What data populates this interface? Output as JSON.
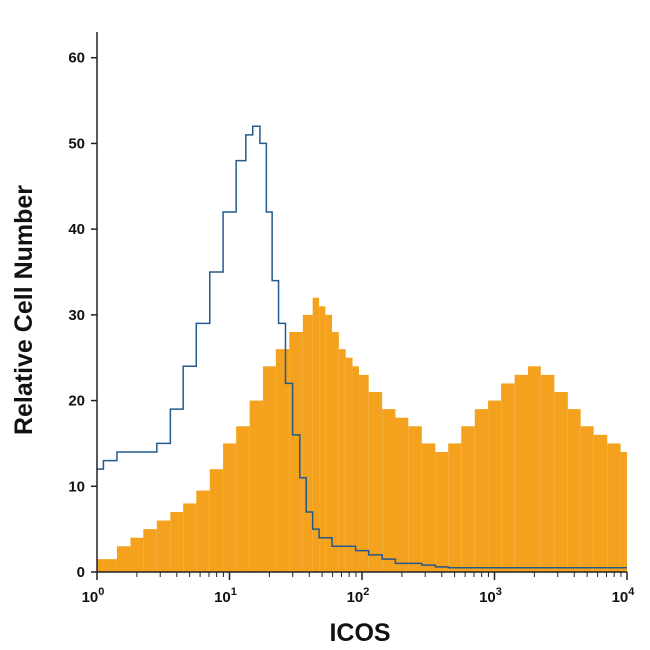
{
  "chart_data": {
    "type": "histogram",
    "xlabel": "ICOS",
    "ylabel": "Relative Cell Number",
    "xscale": "log",
    "xlim": [
      1,
      10000
    ],
    "ylim": [
      0,
      63
    ],
    "yticks": [
      0,
      10,
      20,
      30,
      40,
      50,
      60
    ],
    "xticks": [
      {
        "base": "10",
        "exp": "0",
        "value": 1
      },
      {
        "base": "10",
        "exp": "1",
        "value": 10
      },
      {
        "base": "10",
        "exp": "2",
        "value": 100
      },
      {
        "base": "10",
        "exp": "3",
        "value": 1000
      },
      {
        "base": "10",
        "exp": "4",
        "value": 10000
      }
    ],
    "grid": false,
    "colors": {
      "filled": "#f4a21d",
      "outline": "#245a8c",
      "axis": "#222222"
    },
    "series": [
      {
        "style": "filled",
        "x": [
          1,
          1.25,
          1.6,
          2,
          2.5,
          3.2,
          4,
          5,
          6.3,
          8,
          10,
          12.6,
          16,
          20,
          25,
          32,
          40,
          45,
          50,
          56,
          63,
          71,
          80,
          90,
          100,
          126,
          160,
          200,
          250,
          320,
          400,
          500,
          630,
          800,
          1000,
          1260,
          1600,
          2000,
          2500,
          3200,
          4000,
          5000,
          6300,
          8000,
          10000
        ],
        "y": [
          1.5,
          1.5,
          3,
          4,
          5,
          6,
          7,
          8,
          9.5,
          12,
          15,
          17,
          20,
          24,
          26,
          28,
          30,
          32,
          31,
          30,
          28,
          26,
          25,
          24,
          23,
          21,
          19,
          18,
          17,
          15,
          14,
          15,
          17,
          19,
          20,
          22,
          23,
          24,
          23,
          21,
          19,
          17,
          16,
          15,
          14
        ]
      },
      {
        "style": "outline",
        "x": [
          1,
          1.25,
          1.6,
          2,
          2.5,
          3.2,
          4,
          5,
          6.3,
          8,
          10,
          12.6,
          14,
          16,
          18,
          20,
          22,
          25,
          28,
          32,
          36,
          40,
          45,
          50,
          56,
          63,
          71,
          80,
          100,
          126,
          160,
          200,
          250,
          320,
          400,
          500,
          630,
          800,
          1000,
          1260,
          1600,
          2000,
          2500,
          3200,
          4000,
          5000,
          6300,
          8000,
          10000
        ],
        "y": [
          12,
          13,
          14,
          14,
          14,
          15,
          19,
          24,
          29,
          35,
          42,
          48,
          51,
          52,
          50,
          42,
          34,
          29,
          22,
          16,
          11,
          7,
          5,
          4,
          4,
          3,
          3,
          3,
          2.5,
          2,
          1.5,
          1,
          1,
          0.8,
          0.6,
          0.5,
          0.5,
          0.5,
          0.5,
          0.5,
          0.5,
          0.5,
          0.5,
          0.5,
          0.5,
          0.5,
          0.5,
          0.5,
          0.5
        ]
      }
    ]
  }
}
